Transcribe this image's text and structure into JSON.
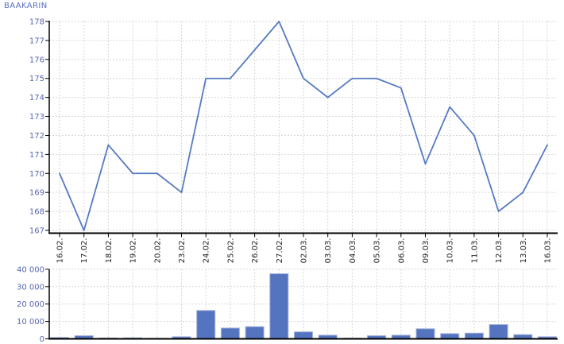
{
  "title": "BAAKARIN",
  "colors": {
    "title": "#5b6fc4",
    "accent": "#5767b2",
    "line": "#567ac2",
    "bar": "#5574c0",
    "bar_border": "#a3b2da",
    "grid": "#d7d7d7",
    "axis": "#000000",
    "x_label": "#222222",
    "background": "#ffffff"
  },
  "chart_data": [
    {
      "type": "line",
      "name": "price",
      "title": "BAAKARIN",
      "x_labels": [
        "16.02.",
        "17.02.",
        "18.02.",
        "19.02.",
        "20.02.",
        "23.02.",
        "24.02.",
        "25.02.",
        "26.02.",
        "27.02.",
        "02.03.",
        "03.03.",
        "04.03.",
        "05.03.",
        "06.03.",
        "09.03.",
        "10.03.",
        "11.03.",
        "12.03.",
        "13.03.",
        "16.03."
      ],
      "values": [
        170,
        167,
        171.5,
        170,
        170,
        169,
        175,
        175,
        176.5,
        178,
        175,
        174,
        175,
        175,
        174.5,
        170.5,
        173.5,
        172,
        168,
        169,
        171.5
      ],
      "ylim": [
        166.8,
        178
      ],
      "yticks": [
        178,
        177,
        176,
        175,
        174,
        173,
        172,
        171,
        170,
        169,
        168,
        167
      ],
      "grid": "dashed",
      "legend": "none"
    },
    {
      "type": "bar",
      "name": "volume",
      "categories": [
        "16.02.",
        "17.02.",
        "18.02.",
        "19.02.",
        "20.02.",
        "23.02.",
        "24.02.",
        "25.02.",
        "26.02.",
        "27.02.",
        "02.03.",
        "03.03.",
        "04.03.",
        "05.03.",
        "06.03.",
        "09.03.",
        "10.03.",
        "11.03.",
        "12.03.",
        "13.03.",
        "16.03."
      ],
      "values": [
        800,
        1800,
        500,
        600,
        300,
        1200,
        16300,
        6200,
        7000,
        37400,
        4000,
        2100,
        400,
        1800,
        2100,
        5800,
        3000,
        3300,
        8200,
        2400,
        1200
      ],
      "ylim": [
        0,
        40000
      ],
      "yticks": [
        40000,
        30000,
        20000,
        10000,
        0
      ],
      "ytick_labels": [
        "40 000",
        "30 000",
        "20 000",
        "10 000",
        "0"
      ],
      "grid": "dashed",
      "x_labels_visible": false,
      "legend": "none"
    }
  ]
}
